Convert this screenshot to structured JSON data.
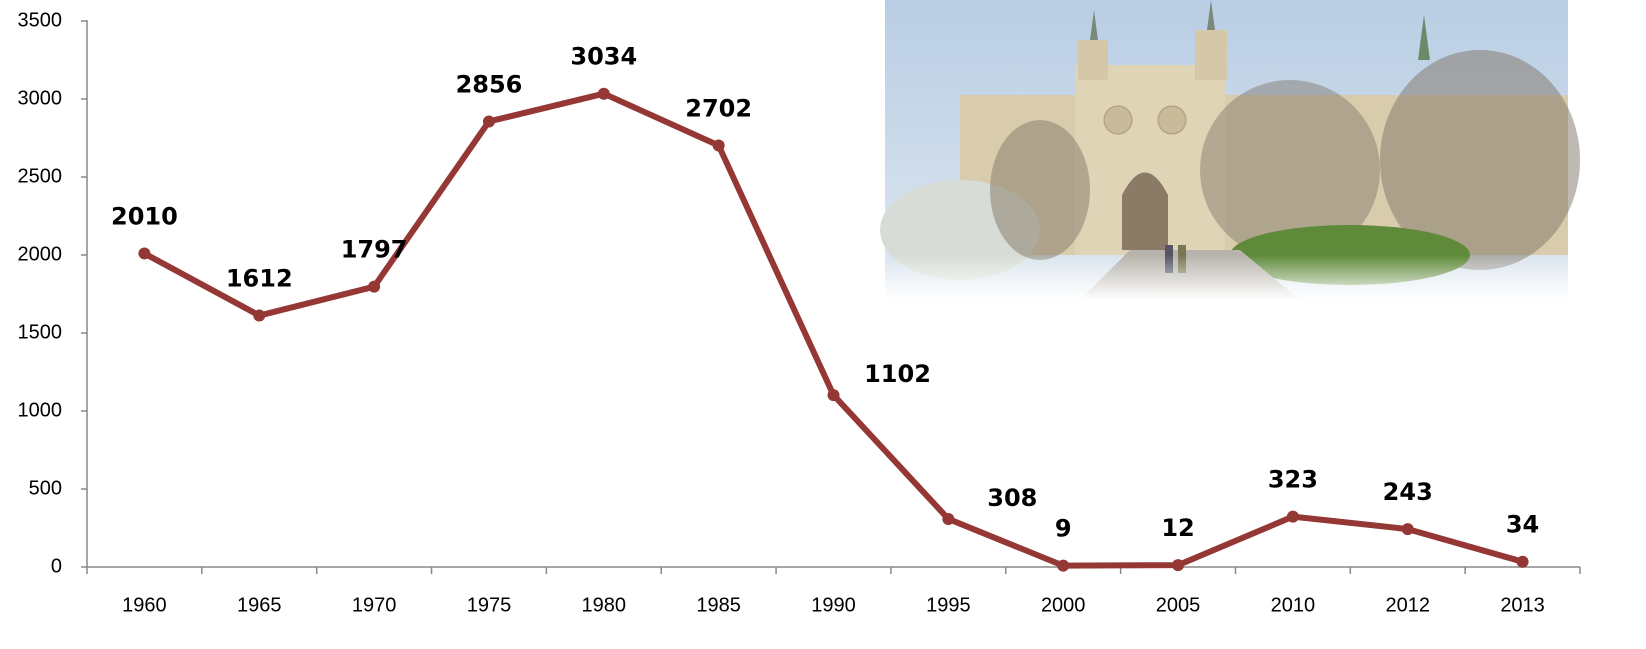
{
  "chart_data": {
    "type": "line",
    "categories": [
      "1960",
      "1965",
      "1970",
      "1975",
      "1980",
      "1985",
      "1990",
      "1995",
      "2000",
      "2005",
      "2010",
      "2012",
      "2013"
    ],
    "values": [
      2010,
      1612,
      1797,
      2856,
      3034,
      2702,
      1102,
      308,
      9,
      12,
      323,
      243,
      34
    ],
    "color": "#953735",
    "ylim": [
      0,
      3500
    ],
    "yticks": [
      0,
      500,
      1000,
      1500,
      2000,
      2500,
      3000,
      3500
    ]
  }
}
